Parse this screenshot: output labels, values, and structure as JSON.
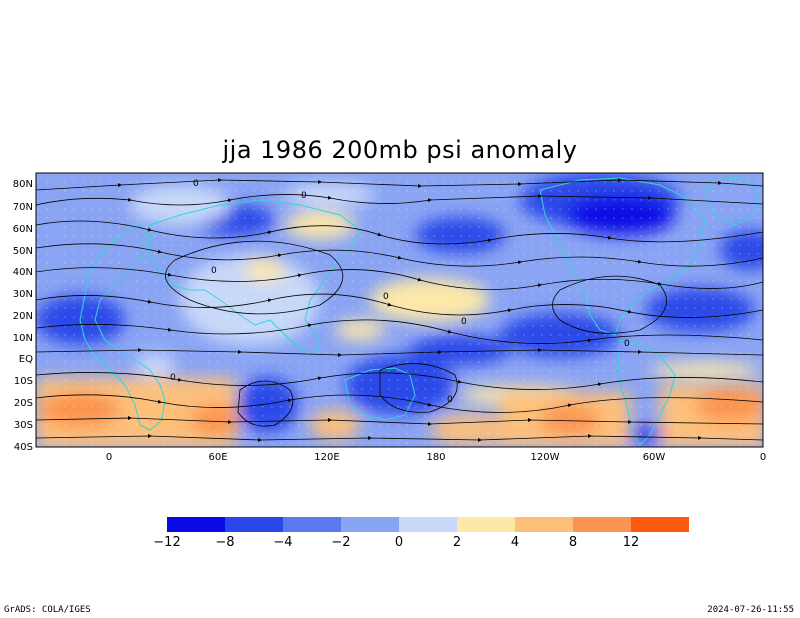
{
  "title": "jja 1986 200mb psi anomaly",
  "map": {
    "lat_labels": [
      "80N",
      "70N",
      "60N",
      "50N",
      "40N",
      "30N",
      "20N",
      "10N",
      "EQ",
      "10S",
      "20S",
      "30S",
      "40S"
    ],
    "lon_labels": [
      "0",
      "60E",
      "120E",
      "180",
      "120W",
      "60W",
      "0"
    ],
    "contour_labels": [
      "0",
      "0",
      "0",
      "0",
      "0",
      "0",
      "0",
      "0"
    ],
    "colors": {
      "coast": "#33d6d6",
      "streamline": "#000000"
    }
  },
  "colorbar": {
    "colors": [
      "#0a0ae6",
      "#2a48e8",
      "#5a78f0",
      "#8aa4f4",
      "#c8d8f8",
      "#fde8a8",
      "#fdc07a",
      "#fb9450",
      "#fc5a10"
    ],
    "labels": [
      "-12",
      "-8",
      "-4",
      "-2",
      "0",
      "2",
      "4",
      "8",
      "12"
    ]
  },
  "footer": {
    "left": "GrADS: COLA/IGES",
    "right": "2024-07-26-11:55"
  }
}
